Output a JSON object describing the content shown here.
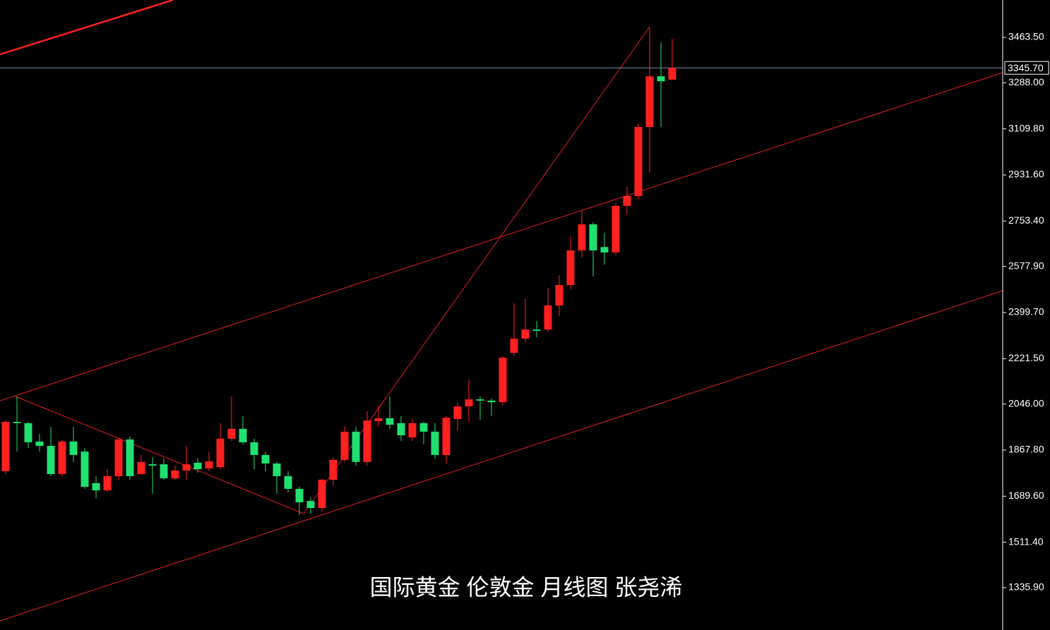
{
  "chart_data": {
    "type": "candlestick",
    "annotation": "国际黄金  伦敦金  月线图 张尧浠",
    "up_color": "#ff2020",
    "down_color": "#20e070",
    "ylim": [
      1172.2,
      3608.1
    ],
    "yticks": [
      {
        "value": 3463.5,
        "label": "3463.50"
      },
      {
        "value": 3288,
        "label": "3288.00"
      },
      {
        "value": 3109.8,
        "label": "3109.80"
      },
      {
        "value": 2931.6,
        "label": "2931.60"
      },
      {
        "value": 2753.4,
        "label": "2753.40"
      },
      {
        "value": 2577.9,
        "label": "2577.90"
      },
      {
        "value": 2399.7,
        "label": "2399.70"
      },
      {
        "value": 2221.5,
        "label": "2221.50"
      },
      {
        "value": 2046,
        "label": "2046.00"
      },
      {
        "value": 1867.8,
        "label": "1867.80"
      },
      {
        "value": 1689.6,
        "label": "1689.60"
      },
      {
        "value": 1511.4,
        "label": "1511.40"
      },
      {
        "value": 1335.9,
        "label": "1335.90"
      }
    ],
    "current_price": {
      "value": 3345.7,
      "label": "3345.70"
    },
    "open": [
      1786,
      1977,
      1972,
      1901,
      1884,
      1775,
      1901,
      1862,
      1740,
      1712,
      1767,
      1909,
      1775,
      1813,
      1813,
      1759,
      1789,
      1819,
      1797,
      1802,
      1912,
      1950,
      1898,
      1849,
      1816,
      1767,
      1718,
      1671,
      1644,
      1753,
      1830,
      1939,
      1822,
      1980,
      1991,
      1972,
      1917,
      1972,
      1939,
      1849,
      1988,
      2037,
      2064,
      2059,
      2053,
      2244,
      2299,
      2334,
      2334,
      2427,
      2506,
      2640,
      2741,
      2653,
      2632,
      2812,
      2850,
      3117,
      3313,
      3300
    ],
    "high": [
      1985,
      2075,
      1977,
      1931,
      1958,
      1906,
      1958,
      1876,
      1767,
      1794,
      1917,
      1922,
      1849,
      1841,
      1835,
      1808,
      1884,
      1835,
      1862,
      1972,
      2075,
      1999,
      1912,
      1862,
      1822,
      1786,
      1726,
      1685,
      1759,
      1841,
      1958,
      1958,
      2018,
      2040,
      2075,
      1999,
      1988,
      1977,
      1972,
      1999,
      2053,
      2141,
      2075,
      2067,
      2231,
      2435,
      2452,
      2367,
      2495,
      2544,
      2694,
      2795,
      2749,
      2708,
      2822,
      2885,
      3131,
      3504,
      3444,
      3458
    ],
    "low": [
      1775,
      1862,
      1876,
      1862,
      1767,
      1767,
      1822,
      1718,
      1682,
      1707,
      1753,
      1753,
      1772,
      1699,
      1753,
      1753,
      1753,
      1781,
      1786,
      1794,
      1903,
      1890,
      1794,
      1786,
      1699,
      1704,
      1617,
      1622,
      1631,
      1731,
      1822,
      1808,
      1808,
      1958,
      1950,
      1903,
      1903,
      1890,
      1835,
      1816,
      1944,
      1977,
      1985,
      1999,
      2040,
      2231,
      2285,
      2304,
      2326,
      2386,
      2490,
      2612,
      2539,
      2585,
      2621,
      2776,
      2839,
      2940,
      3117,
      3300
    ],
    "close": [
      1977,
      1972,
      1898,
      1884,
      1775,
      1901,
      1849,
      1726,
      1712,
      1767,
      1909,
      1767,
      1822,
      1808,
      1759,
      1789,
      1813,
      1794,
      1824,
      1912,
      1950,
      1898,
      1849,
      1816,
      1767,
      1718,
      1666,
      1644,
      1753,
      1830,
      1939,
      1822,
      1982,
      1991,
      1966,
      1925,
      1972,
      1939,
      1849,
      1993,
      2037,
      2064,
      2059,
      2053,
      2225,
      2299,
      2334,
      2329,
      2427,
      2506,
      2640,
      2741,
      2640,
      2632,
      2812,
      2850,
      3117,
      3313,
      3294,
      3345.7
    ]
  }
}
